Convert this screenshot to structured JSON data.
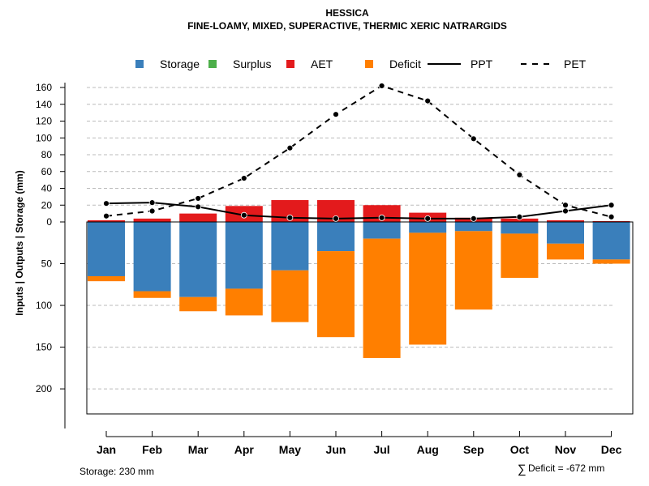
{
  "chart_data": {
    "type": "bar",
    "title": "HESSICA",
    "subtitle": "FINE-LOAMY, MIXED, SUPERACTIVE, THERMIC XERIC NATRARGIDS",
    "ylabel": "Inputs | Outputs | Storage    (mm)",
    "categories": [
      "Jan",
      "Feb",
      "Mar",
      "Apr",
      "May",
      "Jun",
      "Jul",
      "Aug",
      "Sep",
      "Oct",
      "Nov",
      "Dec"
    ],
    "upper_ticks": [
      "160",
      "140",
      "120",
      "100",
      "80",
      "60",
      "40",
      "20",
      "0"
    ],
    "upper_tick_values": [
      160,
      140,
      120,
      100,
      80,
      60,
      40,
      20,
      0
    ],
    "lower_ticks": [
      "50",
      "100",
      "150",
      "200"
    ],
    "lower_tick_values": [
      50,
      100,
      150,
      200
    ],
    "upper_ylim": [
      0,
      160
    ],
    "lower_ylim": [
      0,
      230
    ],
    "legend": [
      {
        "key": "storage",
        "label": "Storage",
        "type": "box",
        "color": "#3A7FBB"
      },
      {
        "key": "surplus",
        "label": "Surplus",
        "type": "box",
        "color": "#4DAF4A"
      },
      {
        "key": "aet",
        "label": "AET",
        "type": "box",
        "color": "#E31A1C"
      },
      {
        "key": "deficit",
        "label": "Deficit",
        "type": "box",
        "color": "#FF7F00"
      },
      {
        "key": "ppt",
        "label": "PPT",
        "type": "line",
        "dash": "solid",
        "color": "#000000"
      },
      {
        "key": "pet",
        "label": "PET",
        "type": "line",
        "dash": "dashed",
        "color": "#000000"
      }
    ],
    "series": [
      {
        "name": "AET",
        "values": [
          2,
          4,
          10,
          19,
          26,
          26,
          20,
          11,
          5,
          4,
          2,
          1
        ]
      },
      {
        "name": "Surplus",
        "values": [
          0,
          0,
          0,
          0,
          0,
          0,
          0,
          0,
          0,
          0,
          0,
          0
        ]
      },
      {
        "name": "PPT",
        "values": [
          22,
          23,
          18,
          8,
          5,
          4,
          5,
          4,
          4,
          6,
          13,
          20
        ]
      },
      {
        "name": "PET",
        "values": [
          7,
          13,
          28,
          52,
          88,
          128,
          162,
          144,
          99,
          56,
          20,
          6
        ]
      },
      {
        "name": "Storage",
        "values": [
          65,
          83,
          90,
          80,
          58,
          35,
          20,
          13,
          11,
          14,
          26,
          45
        ]
      },
      {
        "name": "Deficit",
        "values": [
          6,
          8,
          17,
          32,
          62,
          103,
          143,
          134,
          94,
          53,
          19,
          5
        ]
      }
    ],
    "grid": true,
    "legend_position": "top"
  },
  "footer": {
    "storage_note": "Storage: 230 mm",
    "deficit_symbol": "∑",
    "deficit_note": "Deficit = -672 mm"
  }
}
